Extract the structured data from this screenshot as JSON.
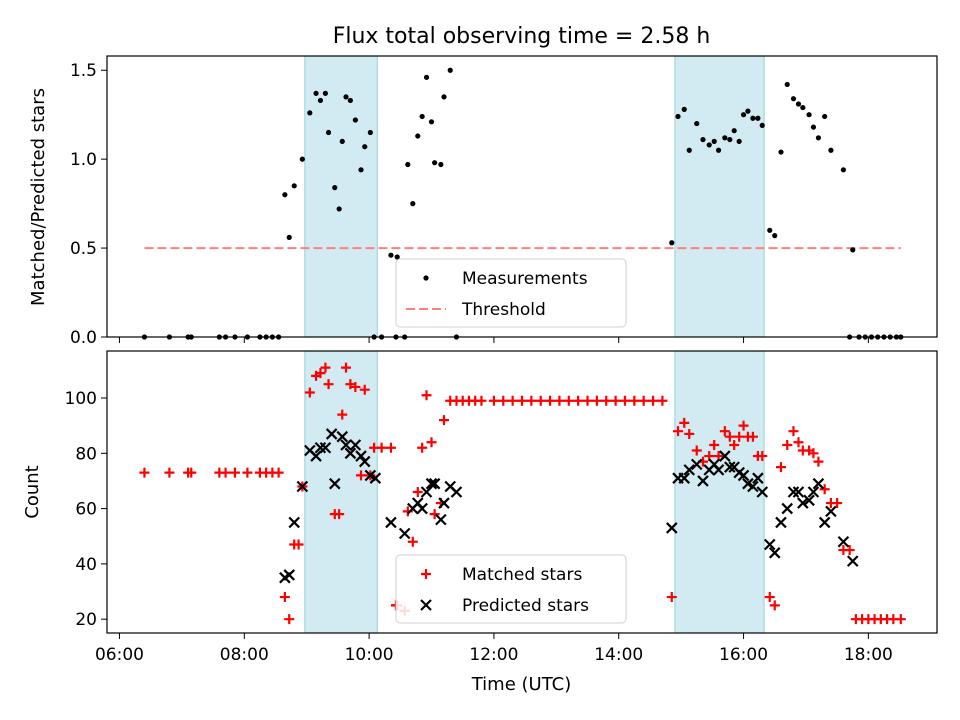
{
  "chart_data": [
    {
      "type": "scatter",
      "title": "Flux total observing time = 2.58 h",
      "xlabel": "",
      "ylabel": "Matched/Predicted stars",
      "xlim": [
        5.8,
        19.1
      ],
      "ylim": [
        0,
        1.58
      ],
      "yticks": [
        0.0,
        0.5,
        1.0,
        1.5
      ],
      "ytick_labels": [
        "0.0",
        "0.5",
        "1.0",
        "1.5"
      ],
      "shaded_intervals": [
        [
          8.97,
          10.13
        ],
        [
          14.9,
          16.33
        ]
      ],
      "shade_color": "#add8e6",
      "legend_placement": "lower center",
      "series": [
        {
          "name": "Measurements",
          "kind": "points",
          "color": "#000000",
          "x": [
            6.4,
            6.8,
            7.1,
            7.15,
            7.6,
            7.7,
            7.85,
            8.05,
            8.25,
            8.35,
            8.45,
            8.55,
            8.65,
            8.72,
            8.8,
            8.93,
            9.05,
            9.15,
            9.22,
            9.3,
            9.35,
            9.45,
            9.52,
            9.57,
            9.63,
            9.7,
            9.78,
            9.87,
            9.93,
            10.02,
            10.08,
            10.2,
            10.35,
            10.43,
            10.45,
            10.57,
            10.62,
            10.7,
            10.78,
            10.85,
            10.92,
            11.0,
            11.05,
            11.15,
            11.2,
            11.3,
            11.4,
            14.85,
            14.95,
            15.05,
            15.13,
            15.25,
            15.35,
            15.45,
            15.53,
            15.6,
            15.7,
            15.78,
            15.85,
            15.93,
            16.0,
            16.07,
            16.15,
            16.23,
            16.3,
            16.42,
            16.5,
            16.6,
            16.7,
            16.8,
            16.88,
            16.95,
            17.05,
            17.12,
            17.2,
            17.3,
            17.4,
            17.6,
            17.7,
            17.75,
            17.85,
            17.95,
            18.05,
            18.15,
            18.25,
            18.35,
            18.45,
            18.52
          ],
          "y": [
            0,
            0,
            0,
            0,
            0,
            0,
            0,
            0,
            0,
            0,
            0,
            0,
            0.8,
            0.56,
            0.85,
            1.0,
            1.26,
            1.37,
            1.33,
            1.37,
            1.15,
            0.84,
            0.72,
            1.1,
            1.35,
            1.33,
            1.22,
            0.94,
            1.07,
            1.15,
            0,
            0,
            0.46,
            0,
            0.45,
            0,
            0.97,
            0.75,
            1.13,
            1.24,
            1.46,
            1.21,
            0.98,
            0.97,
            1.35,
            1.5,
            0,
            0.53,
            1.24,
            1.28,
            1.05,
            1.2,
            1.11,
            1.08,
            1.1,
            1.05,
            1.12,
            1.11,
            1.16,
            1.1,
            1.25,
            1.27,
            1.23,
            1.23,
            1.19,
            0.6,
            0.57,
            1.04,
            1.42,
            1.34,
            1.31,
            1.29,
            1.25,
            1.18,
            1.12,
            1.24,
            1.05,
            0.94,
            0,
            0.49,
            0,
            0,
            0,
            0,
            0,
            0,
            0,
            0
          ]
        },
        {
          "name": "Threshold",
          "kind": "dashed-line",
          "color": "#ff7f7f",
          "x": [
            6.4,
            18.52
          ],
          "y": [
            0.5,
            0.5
          ]
        }
      ]
    },
    {
      "type": "scatter",
      "title": "",
      "xlabel": "Time (UTC)",
      "ylabel": "Count",
      "xlim": [
        5.8,
        19.1
      ],
      "ylim": [
        15,
        117
      ],
      "yticks": [
        20,
        40,
        60,
        80,
        100
      ],
      "ytick_labels": [
        "20",
        "40",
        "60",
        "80",
        "100"
      ],
      "xticks": [
        6,
        8,
        10,
        12,
        14,
        16,
        18
      ],
      "xtick_labels": [
        "06:00",
        "08:00",
        "10:00",
        "12:00",
        "14:00",
        "16:00",
        "18:00"
      ],
      "shaded_intervals": [
        [
          8.97,
          10.13
        ],
        [
          14.9,
          16.33
        ]
      ],
      "shade_color": "#add8e6",
      "legend_placement": "lower center",
      "series": [
        {
          "name": "Matched stars",
          "marker": "plus",
          "color": "#ff0000",
          "x": [
            6.4,
            6.8,
            7.1,
            7.15,
            7.6,
            7.7,
            7.85,
            8.05,
            8.25,
            8.35,
            8.45,
            8.55,
            8.65,
            8.72,
            8.8,
            8.87,
            8.93,
            9.05,
            9.15,
            9.22,
            9.3,
            9.35,
            9.45,
            9.52,
            9.57,
            9.63,
            9.7,
            9.78,
            9.87,
            9.93,
            10.02,
            10.08,
            10.2,
            10.35,
            10.43,
            10.45,
            10.57,
            10.62,
            10.7,
            10.78,
            10.85,
            10.92,
            11.0,
            11.05,
            11.15,
            11.2,
            11.3,
            11.4,
            11.5,
            11.6,
            11.7,
            11.8,
            12.0,
            12.15,
            12.3,
            12.45,
            12.6,
            12.75,
            12.9,
            13.05,
            13.2,
            13.35,
            13.5,
            13.65,
            13.8,
            13.95,
            14.1,
            14.25,
            14.4,
            14.55,
            14.7,
            14.85,
            14.95,
            15.05,
            15.13,
            15.25,
            15.35,
            15.45,
            15.53,
            15.6,
            15.7,
            15.78,
            15.85,
            15.93,
            16.0,
            16.07,
            16.15,
            16.23,
            16.3,
            16.42,
            16.5,
            16.6,
            16.7,
            16.8,
            16.88,
            16.95,
            17.05,
            17.12,
            17.2,
            17.3,
            17.4,
            17.5,
            17.6,
            17.7,
            17.8,
            17.9,
            18.0,
            18.1,
            18.2,
            18.3,
            18.4,
            18.52
          ],
          "y": [
            73,
            73,
            73,
            73,
            73,
            73,
            73,
            73,
            73,
            73,
            73,
            73,
            28,
            20,
            47,
            47,
            68,
            102,
            108,
            109,
            111,
            105,
            58,
            58,
            94,
            111,
            105,
            104,
            72,
            103,
            72,
            82,
            82,
            82,
            25,
            25,
            23,
            59,
            48,
            66,
            82,
            101,
            84,
            58,
            62,
            92,
            99,
            99,
            99,
            99,
            99,
            99,
            99,
            99,
            99,
            99,
            99,
            99,
            99,
            99,
            99,
            99,
            99,
            99,
            99,
            99,
            99,
            99,
            99,
            99,
            99,
            28,
            88,
            91,
            87,
            81,
            77,
            79,
            83,
            79,
            88,
            86,
            83,
            86,
            90,
            86,
            86,
            79,
            79,
            28,
            25,
            75,
            83,
            88,
            84,
            81,
            81,
            80,
            77,
            67,
            62,
            62,
            45,
            45,
            20,
            20,
            20,
            20,
            20,
            20,
            20,
            20
          ]
        },
        {
          "name": "Predicted stars",
          "marker": "x",
          "color": "#000000",
          "x": [
            8.65,
            8.72,
            8.8,
            8.93,
            9.05,
            9.15,
            9.22,
            9.3,
            9.4,
            9.45,
            9.57,
            9.63,
            9.7,
            9.78,
            9.87,
            9.93,
            10.02,
            10.1,
            10.35,
            10.57,
            10.7,
            10.78,
            10.85,
            10.92,
            11.0,
            11.05,
            11.15,
            11.2,
            11.3,
            11.4,
            14.85,
            14.95,
            15.05,
            15.13,
            15.25,
            15.35,
            15.45,
            15.53,
            15.6,
            15.7,
            15.78,
            15.85,
            15.93,
            16.0,
            16.07,
            16.15,
            16.23,
            16.3,
            16.42,
            16.5,
            16.6,
            16.7,
            16.8,
            16.88,
            16.95,
            17.05,
            17.12,
            17.2,
            17.3,
            17.4,
            17.6,
            17.75
          ],
          "y": [
            35,
            36,
            55,
            68,
            81,
            79,
            82,
            82,
            87,
            69,
            86,
            83,
            80,
            83,
            79,
            77,
            72,
            71,
            55,
            51,
            60,
            62,
            60,
            66,
            69,
            69,
            56,
            62,
            68,
            66,
            53,
            71,
            71,
            74,
            76,
            70,
            74,
            76,
            74,
            79,
            75,
            75,
            73,
            72,
            69,
            68,
            71,
            66,
            47,
            44,
            55,
            60,
            66,
            66,
            62,
            63,
            66,
            69,
            55,
            59,
            48,
            41
          ]
        }
      ]
    }
  ]
}
